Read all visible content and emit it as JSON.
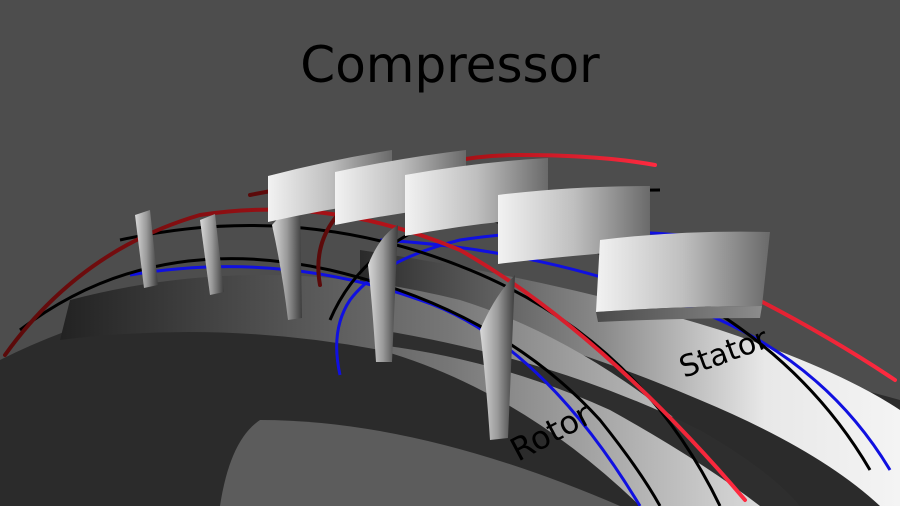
{
  "title": "Compressor",
  "labels": {
    "rotor": "Rotor",
    "stator": "Stator"
  },
  "colors": {
    "background": "#4d4d4d",
    "drum_dark": "#2b2b2b",
    "band_light": "#e6e6e6",
    "streamline_tip": "#e8202a",
    "streamline_mid": "#000000",
    "streamline_hub": "#1010e0"
  }
}
